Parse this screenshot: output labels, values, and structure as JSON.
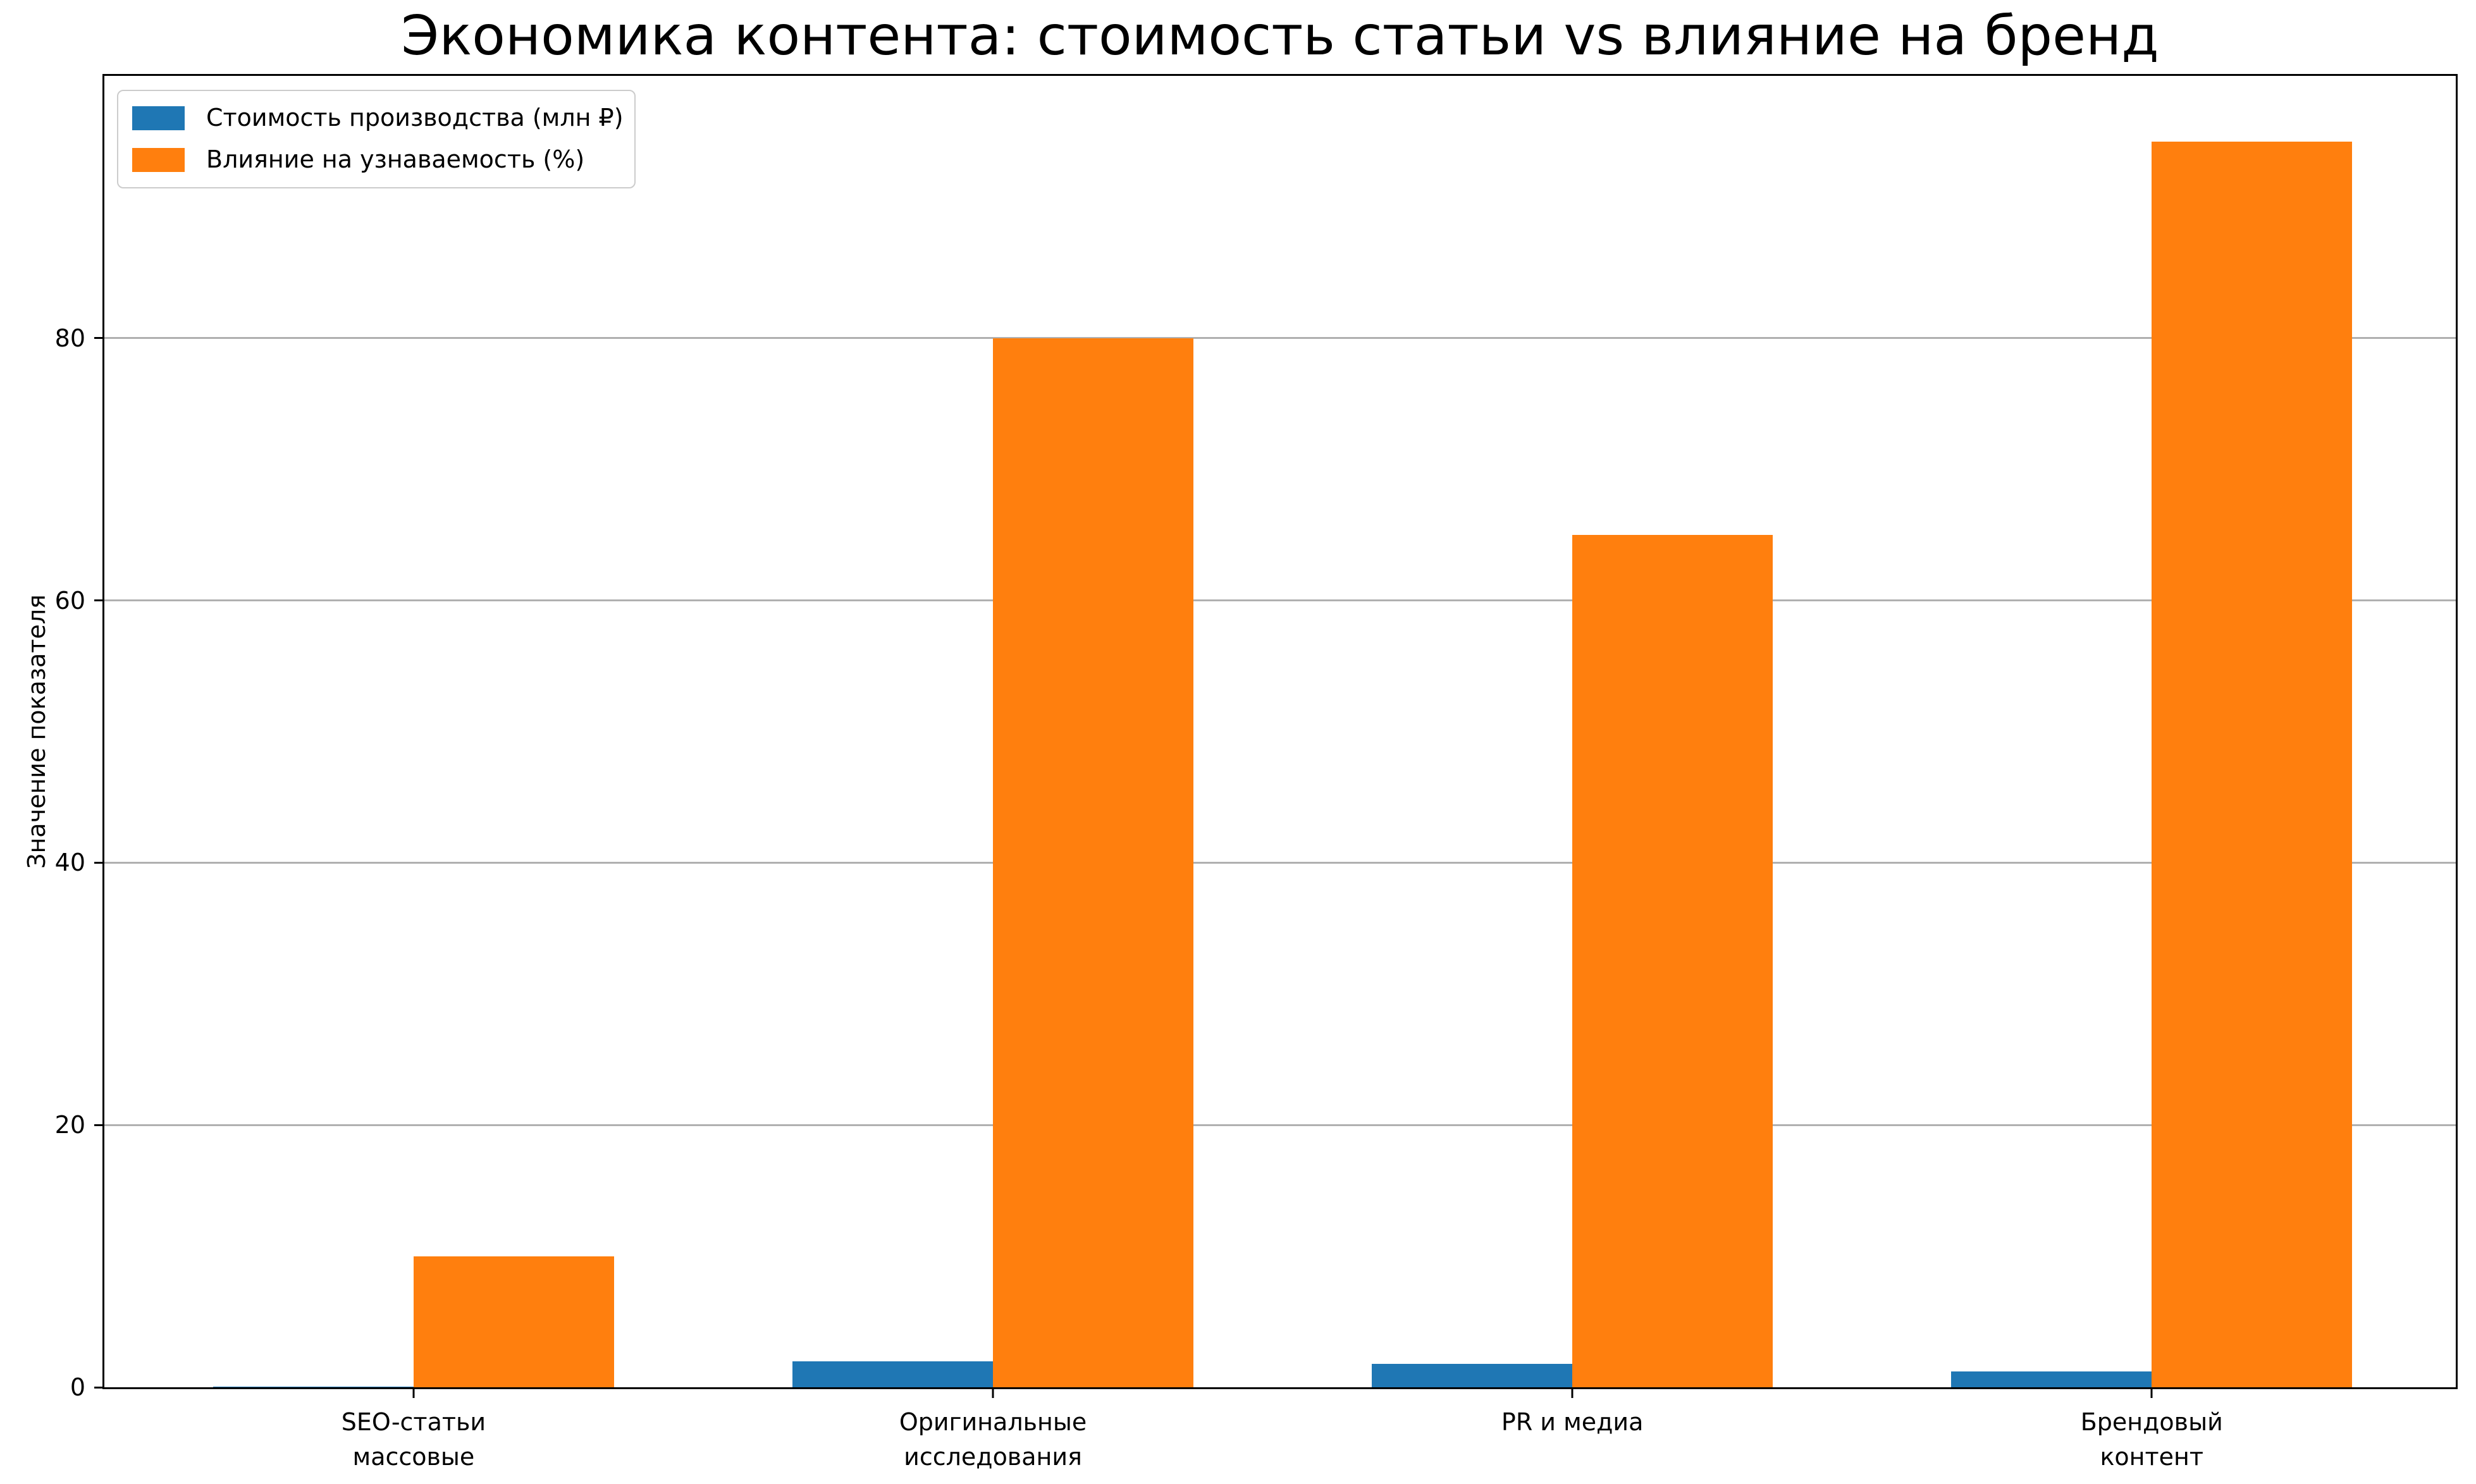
{
  "chart_data": {
    "type": "bar",
    "title": "Экономика контента: стоимость статьи vs влияние на бренд",
    "ylabel": "Значение показателя",
    "xlabel": "",
    "categories": [
      "SEO-статьи\nмассовые",
      "Оригинальные\nисследования",
      "PR и медиа",
      "Брендовый\nконтент"
    ],
    "series": [
      {
        "name": "Стоимость производства (млн ₽)",
        "color": "#1f77b4",
        "values": [
          0.05,
          2,
          1.8,
          1.2
        ]
      },
      {
        "name": "Влияние на узнаваемость (%)",
        "color": "#ff7f0e",
        "values": [
          10,
          80,
          65,
          95
        ]
      }
    ],
    "yticks": [
      0,
      20,
      40,
      60,
      80
    ],
    "ylim": [
      0,
      100
    ],
    "grid": "horizontal",
    "gridline_color": "#b0b0b0",
    "legend_position": "upper-left",
    "background_color": "#ffffff"
  }
}
